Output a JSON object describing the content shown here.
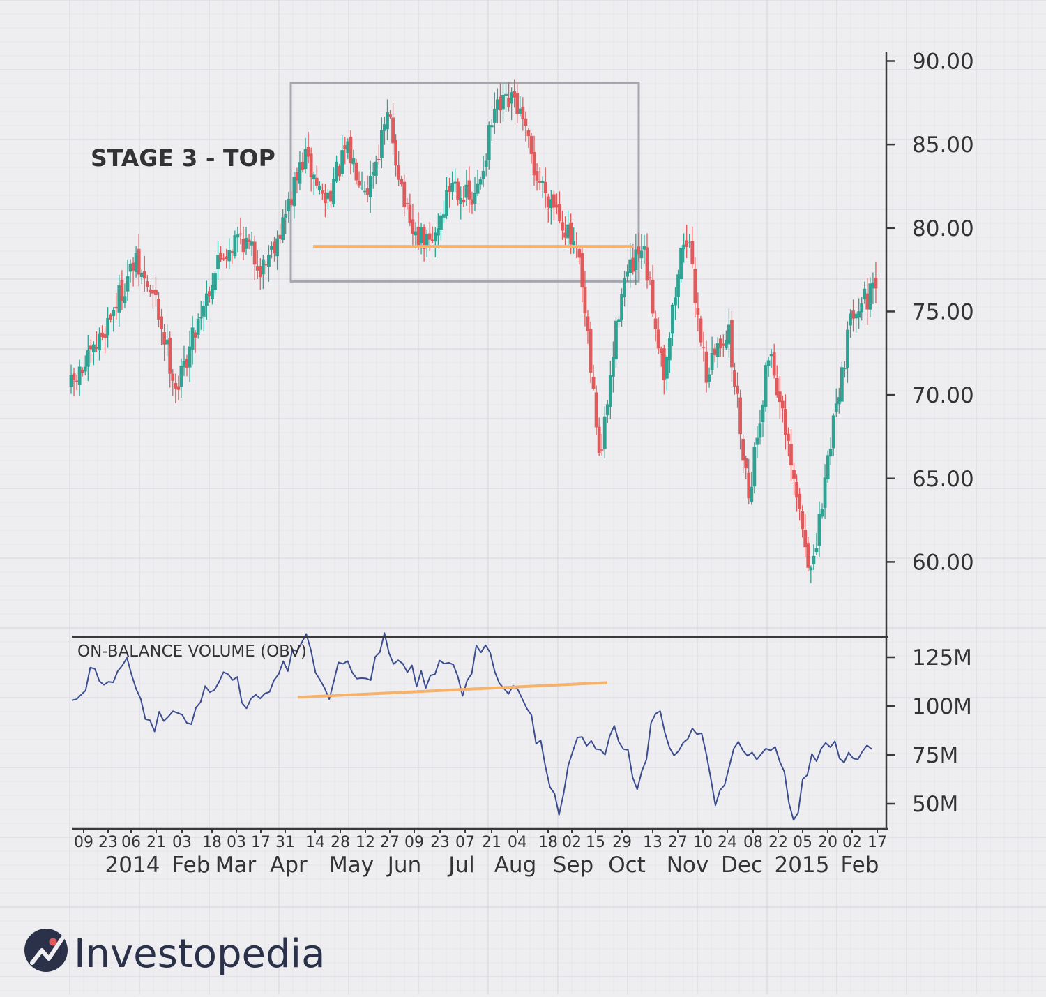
{
  "colors": {
    "background": "#eeeef1",
    "grid": "#d9d9e1",
    "axis": "#3a3a3a",
    "text": "#333333",
    "up": "#2fa393",
    "down": "#e05a5c",
    "obv_line": "#3b4d8e",
    "support_line": "#f6b26b",
    "box": "#a6a6ae",
    "logo_mark": "#2b3149"
  },
  "annotation": {
    "label": "STAGE 3 - TOP"
  },
  "obv_panel": {
    "title": "ON-BALANCE VOLUME (OBV)"
  },
  "logo": {
    "text": "Investopedia",
    "icon": "investopedia-logo-icon"
  },
  "chart_data": [
    {
      "type": "candlestick",
      "ylim": [
        55,
        90
      ],
      "y_tick_labels": [
        "90.00",
        "85.00",
        "80.00",
        "75.00",
        "70.00",
        "65.00",
        "60.00"
      ],
      "y_tick_values": [
        90,
        85,
        80,
        75,
        70,
        65,
        60
      ],
      "x_tick_days": [
        "09",
        "23",
        "06",
        "21",
        "03",
        "18",
        "03",
        "17",
        "31",
        "14",
        "28",
        "12",
        "27",
        "09",
        "23",
        "07",
        "21",
        "04",
        "18",
        "02",
        "15",
        "29",
        "13",
        "27",
        "10",
        "24",
        "08",
        "22",
        "05",
        "20",
        "02",
        "17"
      ],
      "x_tick_months": [
        "2014",
        "Feb",
        "Mar",
        "Apr",
        "May",
        "Jun",
        "Jul",
        "Aug",
        "Sep",
        "Oct",
        "Nov",
        "Dec",
        "2015",
        "Feb"
      ],
      "grid": true,
      "price_path_closes": [
        70.5,
        72.3,
        75.2,
        77.9,
        75.5,
        70.3,
        74.6,
        78.2,
        79.6,
        77.6,
        80.3,
        84.3,
        81.6,
        84.6,
        82.5,
        86.7,
        79.7,
        78.9,
        82.9,
        81.3,
        86.9,
        87.6,
        83.0,
        81.2,
        77.7,
        66.0,
        76.6,
        78.6,
        71.5,
        80.1,
        71.3,
        74.1,
        64.1,
        73.0,
        65.5,
        59.0,
        68.7,
        75.6,
        76.0
      ],
      "annotations": [
        {
          "kind": "rectangle",
          "x_start": "Apr 07 2014",
          "x_end": "Oct 13 2014",
          "y_low": 76.8,
          "y_high": 88.7
        },
        {
          "kind": "support_line",
          "x_start": "Apr 14 2014",
          "x_end": "Oct 13 2014",
          "y": 78.9
        }
      ]
    },
    {
      "type": "line",
      "series": [
        {
          "values": [
            103,
            115,
            112,
            123,
            90,
            98,
            93,
            108,
            118,
            102,
            105,
            122,
            133,
            105,
            124,
            110,
            133,
            118,
            112,
            126,
            110,
            132,
            113,
            105,
            80,
            48,
            85,
            72,
            88,
            60,
            98,
            75,
            93,
            50,
            80,
            75,
            84,
            42,
            75,
            82,
            72,
            78
          ]
        }
      ],
      "ylim": [
        38,
        135
      ],
      "y_tick_labels": [
        "125M",
        "100M",
        "75M",
        "50M"
      ],
      "y_tick_values": [
        125,
        100,
        75,
        50
      ],
      "annotations": [
        {
          "kind": "support_line",
          "x_start": "Apr 07 2014",
          "x_end": "Sep 22 2014",
          "y_start": 104.5,
          "y_end": 112
        }
      ]
    }
  ]
}
